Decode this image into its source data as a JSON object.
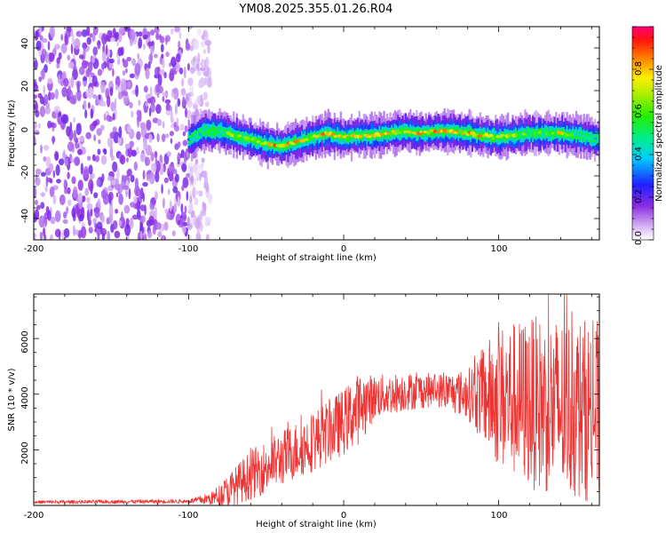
{
  "title": "YM08.2025.355.01.26.R04",
  "chart_data": [
    {
      "type": "heatmap",
      "name": "spectrogram",
      "xlabel": "Height of straight line (km)",
      "ylabel": "Frequency (Hz)",
      "xlim": [
        -200,
        165
      ],
      "ylim": [
        -50,
        50
      ],
      "xticks": [
        "-200",
        "-100",
        "0",
        "100"
      ],
      "yticks": [
        "40",
        "20",
        "0",
        "-20",
        "-40"
      ],
      "colorbar": {
        "label": "Normalized spectral amplitude",
        "range": [
          0,
          1
        ],
        "ticks": [
          "0.0",
          "0.2",
          "0.4",
          "0.6",
          "0.8"
        ]
      },
      "noise_region_x": [
        -200,
        -100
      ],
      "signal_start_x": -100,
      "ridge": {
        "x": [
          -100,
          -90,
          -80,
          -70,
          -60,
          -50,
          -40,
          -30,
          -20,
          -10,
          0,
          10,
          20,
          30,
          40,
          50,
          60,
          70,
          80,
          90,
          100,
          110,
          120,
          130,
          140,
          150,
          165
        ],
        "freq": [
          -3,
          1,
          1,
          -1,
          -3,
          -5,
          -6,
          -4,
          -2,
          0,
          -2,
          -1,
          -1,
          0,
          1,
          0,
          1,
          1,
          0,
          -1,
          -2,
          -1,
          0,
          0,
          0,
          -1,
          -3
        ],
        "amplitude": [
          0.4,
          0.55,
          0.6,
          0.7,
          0.7,
          0.85,
          0.9,
          0.85,
          0.8,
          0.9,
          0.75,
          0.8,
          0.85,
          0.8,
          0.85,
          0.85,
          0.9,
          0.85,
          0.9,
          0.85,
          0.75,
          0.7,
          0.65,
          0.6,
          0.85,
          0.55,
          0.45
        ]
      }
    },
    {
      "type": "line",
      "name": "snr",
      "xlabel": "Height of straight line (km)",
      "ylabel": "SNR (10 * v/v)",
      "xlim": [
        -200,
        165
      ],
      "ylim": [
        0,
        7600
      ],
      "xticks": [
        "-200",
        "-100",
        "0",
        "100"
      ],
      "yticks": [
        "2000",
        "4000",
        "6000"
      ],
      "color": "#ee3333",
      "envelope": {
        "x": [
          -200,
          -100,
          -85,
          -75,
          -60,
          -40,
          -20,
          0,
          10,
          20,
          40,
          60,
          80,
          100,
          120,
          140,
          165
        ],
        "mean": [
          120,
          150,
          250,
          500,
          1100,
          1700,
          2300,
          3000,
          3500,
          3900,
          4100,
          4150,
          4000,
          3900,
          3700,
          3500,
          3400
        ],
        "spread": [
          60,
          70,
          250,
          600,
          900,
          1000,
          1100,
          1200,
          1300,
          800,
          700,
          600,
          900,
          2600,
          3100,
          3300,
          3300
        ]
      }
    }
  ]
}
